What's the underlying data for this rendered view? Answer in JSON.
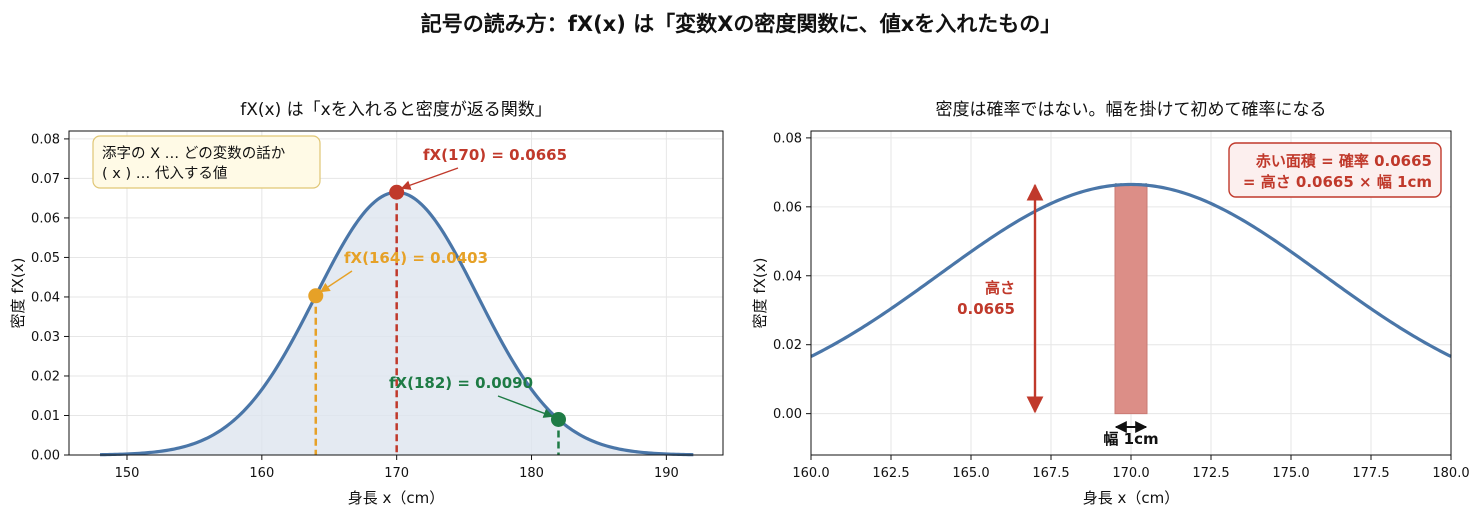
{
  "suptitle": "記号の読み方：fX(x) は「変数Xの密度関数に、値xを入れたもの」",
  "colors": {
    "curve": "#4a76a8",
    "fill": "#dde5ef",
    "red": "#c0392b",
    "orange": "#e6a127",
    "green": "#1e7b45",
    "bar": "#dc8e87",
    "box_left_bg": "#fffae6",
    "box_left_border": "#e0c675",
    "box_right_bg": "#fcefee",
    "box_right_border": "#c0392b"
  },
  "chart_data": [
    {
      "type": "line",
      "title": "fX(x) は「xを入れると密度が返る関数」",
      "xlabel": "身長 x（cm）",
      "ylabel": "密度 fX(x)",
      "xlim": [
        145.7,
        194.2
      ],
      "ylim": [
        0,
        0.082
      ],
      "xticks": [
        150,
        160,
        170,
        180,
        190
      ],
      "yticks": [
        "0.00",
        "0.01",
        "0.02",
        "0.03",
        "0.04",
        "0.05",
        "0.06",
        "0.07",
        "0.08"
      ],
      "grid": true,
      "curve": {
        "distribution": "normal",
        "mean": 170,
        "sd": 6,
        "x_range": [
          148,
          192
        ],
        "filled": true
      },
      "points": [
        {
          "x": 170,
          "y": 0.0665,
          "label": "fX(170) = 0.0665",
          "color": "red"
        },
        {
          "x": 164,
          "y": 0.0403,
          "label": "fX(164) = 0.0403",
          "color": "orange"
        },
        {
          "x": 182,
          "y": 0.009,
          "label": "fX(182) = 0.0090",
          "color": "green"
        }
      ],
      "note": {
        "lines": [
          "添字の X … どの変数の話か",
          "( x ) … 代入する値"
        ],
        "placement": "top-left"
      }
    },
    {
      "type": "line",
      "title": "密度は確率ではない。幅を掛けて初めて確率になる",
      "xlabel": "身長 x（cm）",
      "ylabel": "密度 fX(x)",
      "xlim": [
        160,
        180
      ],
      "ylim": [
        -0.012,
        0.082
      ],
      "xticks": [
        "160.0",
        "162.5",
        "165.0",
        "167.5",
        "170.0",
        "172.5",
        "175.0",
        "177.5",
        "180.0"
      ],
      "yticks": [
        "0.00",
        "0.02",
        "0.04",
        "0.06",
        "0.08"
      ],
      "grid": true,
      "curve": {
        "distribution": "normal",
        "mean": 170,
        "sd": 6,
        "x_range": [
          160,
          180
        ],
        "filled": false
      },
      "bar": {
        "x0": 169.5,
        "x1": 170.5,
        "height": 0.0665
      },
      "height_arrow": {
        "x": 167,
        "y0": 0,
        "y1": 0.0665,
        "label_lines": [
          "高さ",
          "0.0665"
        ]
      },
      "width_arrow": {
        "x0": 169.5,
        "x1": 170.5,
        "label": "幅 1cm"
      },
      "note": {
        "lines": [
          "赤い面積 = 確率 0.0665",
          "= 高さ 0.0665 × 幅 1cm"
        ],
        "placement": "top-right"
      }
    }
  ]
}
